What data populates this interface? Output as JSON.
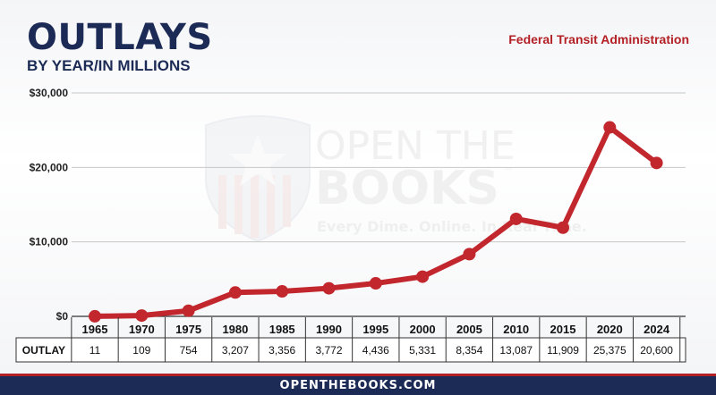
{
  "header": {
    "title": "OUTLAYS",
    "subtitle": "BY YEAR/IN MILLIONS",
    "agency": "Federal Transit Administration"
  },
  "watermark": {
    "line1": "OPEN THE",
    "line2": "BOOKS",
    "tm": "™",
    "tagline": "Every Dime. Online. In Real Time."
  },
  "footer": {
    "text": "OPENTHEBOOKS.COM"
  },
  "colors": {
    "navy": "#1c2a56",
    "line": "#c1272d",
    "accent": "#b32025"
  },
  "chart_data": {
    "type": "line",
    "title": "OUTLAYS",
    "subtitle": "BY YEAR/IN MILLIONS",
    "x": [
      "1965",
      "1970",
      "1975",
      "1980",
      "1985",
      "1990",
      "1995",
      "2000",
      "2005",
      "2010",
      "2015",
      "2020",
      "2024"
    ],
    "series": [
      {
        "name": "OUTLAY",
        "values": [
          11,
          109,
          754,
          3207,
          3356,
          3772,
          4436,
          5331,
          8354,
          13087,
          11909,
          25375,
          20600
        ]
      }
    ],
    "value_labels": [
      "11",
      "109",
      "754",
      "3,207",
      "3,356",
      "3,772",
      "4,436",
      "5,331",
      "8,354",
      "13,087",
      "11,909",
      "25,375",
      "20,600"
    ],
    "ylim": [
      0,
      30000
    ],
    "yticks": [
      0,
      10000,
      20000,
      30000
    ],
    "ytick_labels": [
      "$0",
      "$10,000",
      "$20,000",
      "$30,000"
    ],
    "table_row_label": "OUTLAY",
    "grid": true
  }
}
